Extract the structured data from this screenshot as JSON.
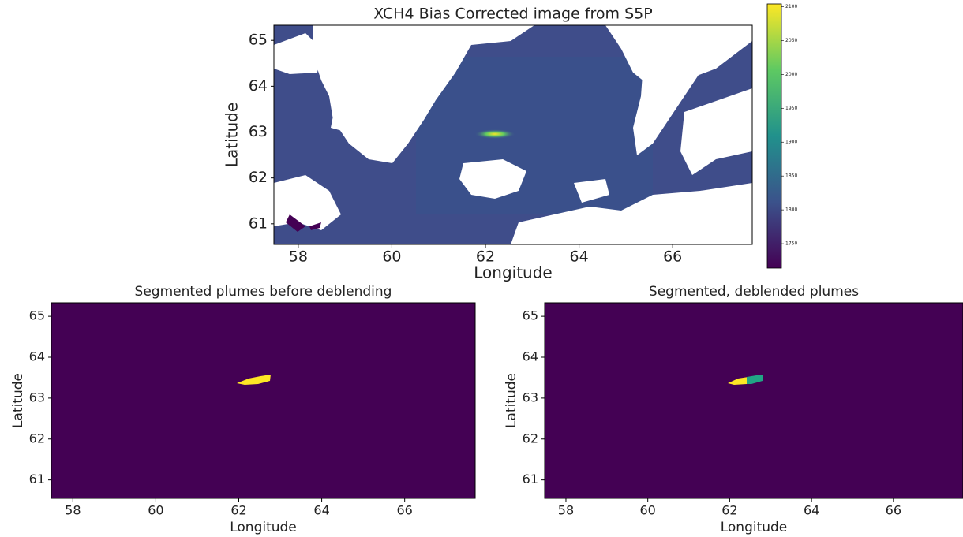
{
  "chart_data": [
    {
      "type": "image",
      "title": "XCH4 Bias Corrected image from S5P",
      "x_label": "Longitude",
      "y_label": "Latitude",
      "xlim": [
        57.48,
        67.7
      ],
      "ylim": [
        60.55,
        65.33
      ],
      "xticks": [
        58,
        60,
        62,
        64,
        66
      ],
      "yticks": [
        61,
        62,
        63,
        64,
        65
      ],
      "colormap": "viridis",
      "clim": [
        1714,
        2104
      ],
      "cticks": [
        1750,
        1800,
        1850,
        1900,
        1950,
        2000,
        2050,
        2100
      ]
    },
    {
      "type": "image",
      "title": "Segmented plumes before deblending",
      "x_label": "Longitude",
      "y_label": "Latitude",
      "xlim": [
        57.48,
        67.7
      ],
      "ylim": [
        60.55,
        65.33
      ],
      "xticks": [
        58,
        60,
        62,
        64,
        66
      ],
      "yticks": [
        61,
        62,
        63,
        64,
        65
      ],
      "colormap": "viridis"
    },
    {
      "type": "image",
      "title": "Segmented, deblended plumes",
      "x_label": "Longitude",
      "y_label": "Latitude",
      "xlim": [
        57.48,
        67.7
      ],
      "ylim": [
        60.55,
        65.33
      ],
      "xticks": [
        58,
        60,
        62,
        64,
        66
      ],
      "yticks": [
        61,
        62,
        63,
        64,
        65
      ],
      "colormap": "viridis"
    }
  ]
}
